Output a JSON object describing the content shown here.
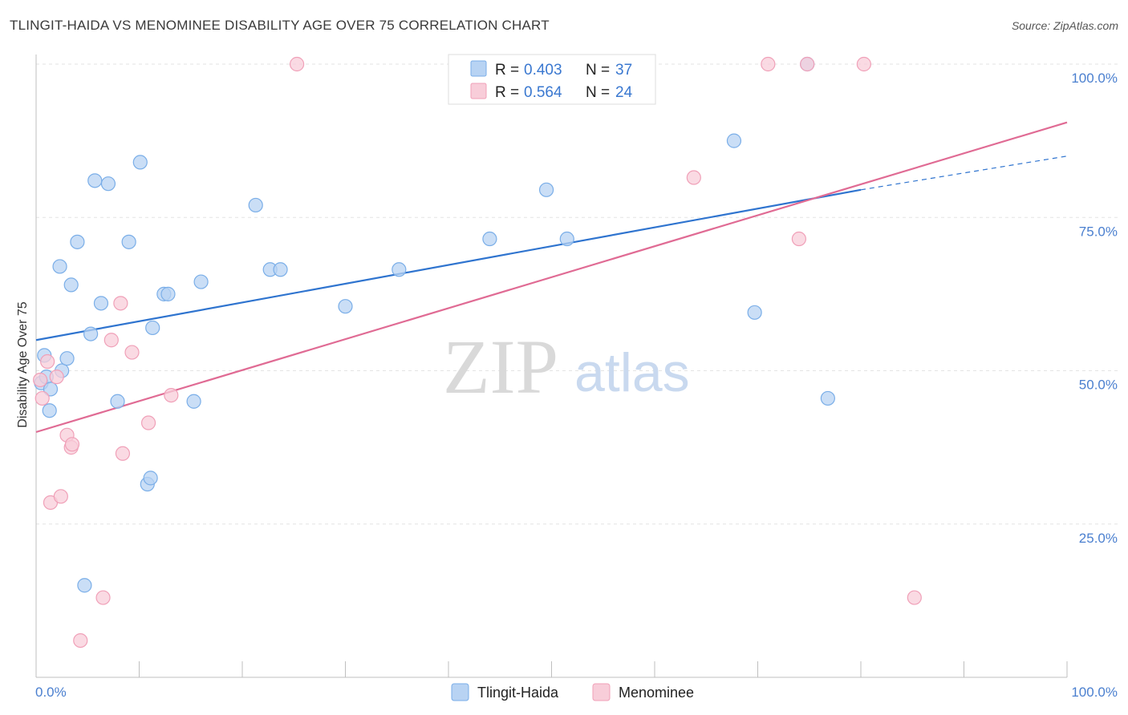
{
  "title": "TLINGIT-HAIDA VS MENOMINEE DISABILITY AGE OVER 75 CORRELATION CHART",
  "source": "Source: ZipAtlas.com",
  "watermark": {
    "part1": "ZIP",
    "part2": "atlas"
  },
  "chart_data": {
    "type": "scatter",
    "xlabel": "",
    "ylabel": "Disability Age Over 75",
    "xlim": [
      0,
      100
    ],
    "ylim": [
      0,
      100
    ],
    "x_tick_labels": [
      "0.0%",
      "100.0%"
    ],
    "y_ticks": [
      25,
      50,
      75,
      100
    ],
    "y_tick_labels": [
      "25.0%",
      "50.0%",
      "75.0%",
      "100.0%"
    ],
    "grid": true,
    "legend_position": "top-center",
    "series": [
      {
        "name": "Tlingit-Haida",
        "color": "#7aaee8",
        "fill": "#b8d3f3",
        "line_color": "#2f74cf",
        "R": "0.403",
        "N": "37",
        "points": [
          [
            0.5,
            48
          ],
          [
            0.8,
            52.5
          ],
          [
            1.0,
            49
          ],
          [
            1.4,
            47
          ],
          [
            1.3,
            43.5
          ],
          [
            2.3,
            67
          ],
          [
            2.5,
            50
          ],
          [
            3.0,
            52
          ],
          [
            3.4,
            64
          ],
          [
            4.0,
            71
          ],
          [
            5.3,
            56
          ],
          [
            5.7,
            81
          ],
          [
            6.3,
            61
          ],
          [
            7.0,
            80.5
          ],
          [
            7.9,
            45
          ],
          [
            9.0,
            71
          ],
          [
            10.1,
            84
          ],
          [
            10.8,
            31.5
          ],
          [
            11.1,
            32.5
          ],
          [
            11.3,
            57
          ],
          [
            12.4,
            62.5
          ],
          [
            12.8,
            62.5
          ],
          [
            15.3,
            45
          ],
          [
            16.0,
            64.5
          ],
          [
            21.3,
            77
          ],
          [
            22.7,
            66.5
          ],
          [
            23.7,
            66.5
          ],
          [
            30.0,
            60.5
          ],
          [
            35.2,
            66.5
          ],
          [
            44.0,
            71.5
          ],
          [
            49.5,
            79.5
          ],
          [
            51.5,
            71.5
          ],
          [
            67.7,
            87.5
          ],
          [
            69.7,
            59.5
          ],
          [
            74.8,
            100
          ],
          [
            76.8,
            45.5
          ],
          [
            4.7,
            15
          ]
        ],
        "trend_solid": [
          [
            0,
            55
          ],
          [
            80,
            79.5
          ]
        ],
        "trend_dashed": [
          [
            80,
            79.5
          ],
          [
            100,
            85
          ]
        ]
      },
      {
        "name": "Menominee",
        "color": "#f0a0b8",
        "fill": "#f8cdd9",
        "line_color": "#e06b94",
        "R": "0.564",
        "N": "24",
        "points": [
          [
            0.4,
            48.5
          ],
          [
            0.6,
            45.5
          ],
          [
            1.1,
            51.5
          ],
          [
            2.0,
            49
          ],
          [
            1.4,
            28.5
          ],
          [
            2.4,
            29.5
          ],
          [
            3.0,
            39.5
          ],
          [
            3.4,
            37.5
          ],
          [
            3.5,
            38
          ],
          [
            4.3,
            6
          ],
          [
            6.5,
            13
          ],
          [
            7.3,
            55
          ],
          [
            8.2,
            61
          ],
          [
            8.4,
            36.5
          ],
          [
            9.3,
            53
          ],
          [
            10.9,
            41.5
          ],
          [
            13.1,
            46
          ],
          [
            25.3,
            100
          ],
          [
            63.8,
            81.5
          ],
          [
            71.0,
            100
          ],
          [
            74.8,
            100
          ],
          [
            74.0,
            71.5
          ],
          [
            80.3,
            100
          ],
          [
            85.2,
            13
          ]
        ],
        "trend_solid": [
          [
            0,
            40
          ],
          [
            100,
            90.5
          ]
        ]
      }
    ]
  }
}
